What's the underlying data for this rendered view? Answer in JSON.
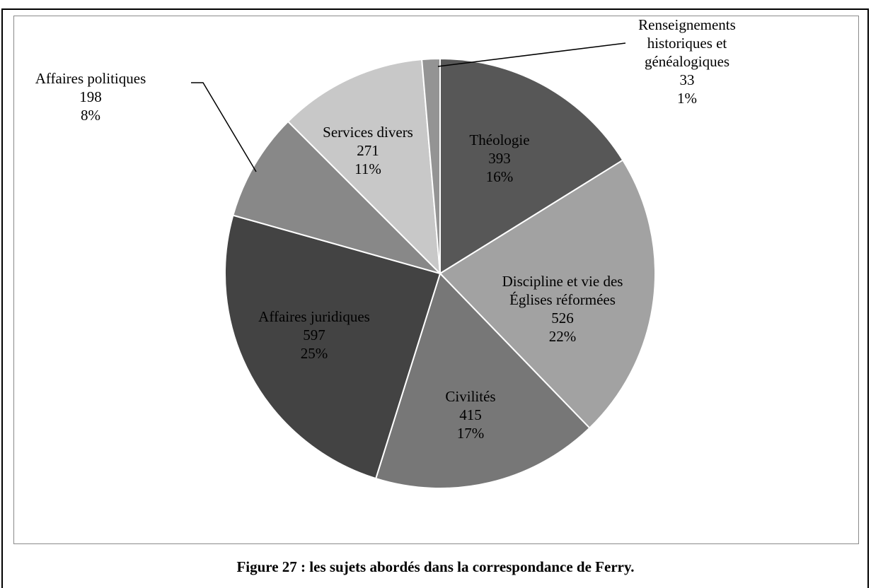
{
  "chart_data": {
    "type": "pie",
    "start": "12 o'clock",
    "direction": "clockwise",
    "slices": [
      {
        "label": [
          "Théologie"
        ],
        "value": 393,
        "percent": "16%",
        "color": "#575757"
      },
      {
        "label": [
          "Discipline et vie des",
          "Églises réformées"
        ],
        "value": 526,
        "percent": "22%",
        "color": "#a2a2a2"
      },
      {
        "label": [
          "Civilités"
        ],
        "value": 415,
        "percent": "17%",
        "color": "#777777"
      },
      {
        "label": [
          "Affaires juridiques"
        ],
        "value": 597,
        "percent": "25%",
        "color": "#434343"
      },
      {
        "label": [
          "Affaires politiques"
        ],
        "value": 198,
        "percent": "8%",
        "color": "#888888"
      },
      {
        "label": [
          "Services divers"
        ],
        "value": 271,
        "percent": "11%",
        "color": "#c8c8c8"
      },
      {
        "label": [
          "Renseignements",
          "historiques et",
          "généalogiques"
        ],
        "value": 33,
        "percent": "1%",
        "color": "#949494"
      }
    ]
  },
  "caption": "Figure 27 : les sujets abordés dans la correspondance de Ferry."
}
